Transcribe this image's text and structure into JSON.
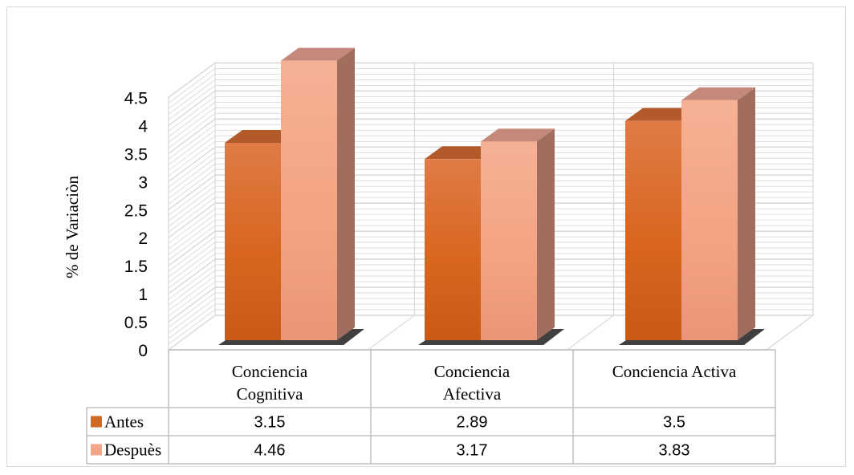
{
  "chart_data": {
    "type": "bar",
    "style": "3d-clustered-column-with-data-table",
    "title": "",
    "xlabel": "",
    "ylabel": "% de Variaciòn",
    "ylim": [
      0,
      4.5
    ],
    "yticks": [
      "0",
      "0.5",
      "1",
      "1.5",
      "2",
      "2.5",
      "3",
      "3.5",
      "4",
      "4.5"
    ],
    "grid": true,
    "categories": [
      [
        "Conciencia",
        "Cognitiva"
      ],
      [
        "Conciencia",
        "Afectiva"
      ],
      [
        "Conciencia Activa"
      ]
    ],
    "series": [
      {
        "name": "Antes",
        "values": [
          3.15,
          2.89,
          3.5
        ],
        "labels": [
          "3.15",
          "2.89",
          "3.5"
        ],
        "color": "#d9681f"
      },
      {
        "name": "Despuès",
        "values": [
          4.46,
          3.17,
          3.83
        ],
        "labels": [
          "4.46",
          "3.17",
          "3.83"
        ],
        "color": "#f4a487"
      }
    ]
  }
}
